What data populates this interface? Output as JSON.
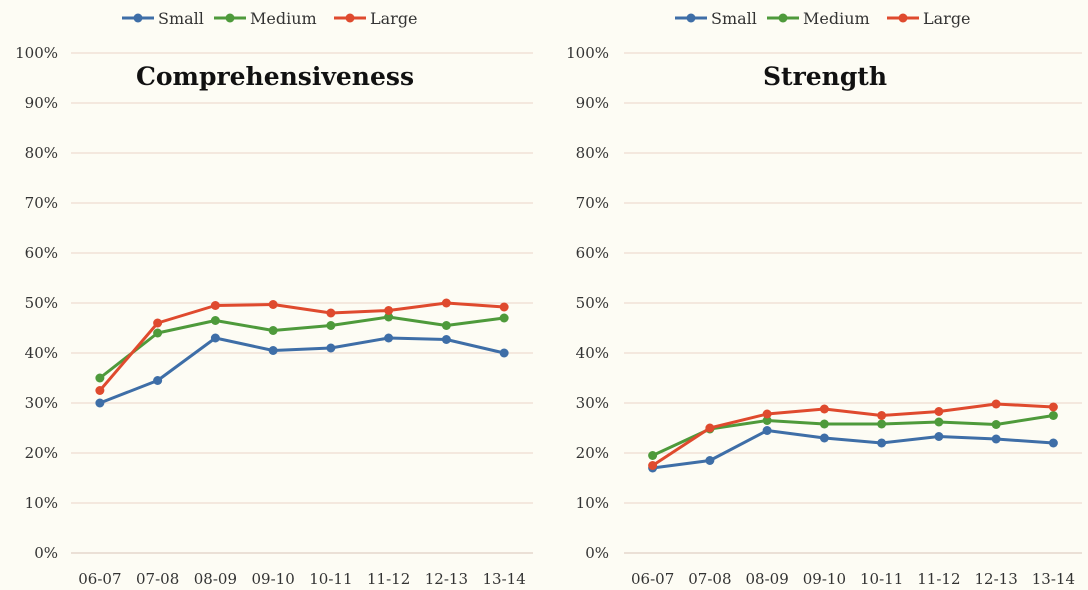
{
  "chart_data": [
    {
      "type": "line",
      "title": "Comprehensiveness",
      "xlabel": "",
      "ylabel": "",
      "categories": [
        "06-07",
        "07-08",
        "08-09",
        "09-10",
        "10-11",
        "11-12",
        "12-13",
        "13-14"
      ],
      "ylim": [
        0,
        100
      ],
      "yticks": [
        "0%",
        "10%",
        "20%",
        "30%",
        "40%",
        "50%",
        "60%",
        "70%",
        "80%",
        "90%",
        "100%"
      ],
      "grid": true,
      "legend": "top",
      "series": [
        {
          "name": "Small",
          "color": "#3e6ea7",
          "values": [
            30,
            34.5,
            43,
            40.5,
            41,
            43,
            42.7,
            40
          ]
        },
        {
          "name": "Medium",
          "color": "#4e9a3b",
          "values": [
            35,
            44,
            46.5,
            44.5,
            45.5,
            47.2,
            45.5,
            47
          ]
        },
        {
          "name": "Large",
          "color": "#df4a2e",
          "values": [
            32.5,
            46,
            49.5,
            49.7,
            48,
            48.5,
            50,
            49.2
          ]
        }
      ]
    },
    {
      "type": "line",
      "title": "Strength",
      "xlabel": "",
      "ylabel": "",
      "categories": [
        "06-07",
        "07-08",
        "08-09",
        "09-10",
        "10-11",
        "11-12",
        "12-13",
        "13-14"
      ],
      "ylim": [
        0,
        100
      ],
      "yticks": [
        "0%",
        "10%",
        "20%",
        "30%",
        "40%",
        "50%",
        "60%",
        "70%",
        "80%",
        "90%",
        "100%"
      ],
      "grid": true,
      "legend": "top",
      "series": [
        {
          "name": "Small",
          "color": "#3e6ea7",
          "values": [
            17,
            18.5,
            24.5,
            23,
            22,
            23.3,
            22.8,
            22
          ]
        },
        {
          "name": "Medium",
          "color": "#4e9a3b",
          "values": [
            19.5,
            24.8,
            26.5,
            25.8,
            25.8,
            26.2,
            25.7,
            27.5
          ]
        },
        {
          "name": "Large",
          "color": "#df4a2e",
          "values": [
            17.5,
            25,
            27.8,
            28.8,
            27.5,
            28.3,
            29.8,
            29.2
          ]
        }
      ]
    }
  ]
}
